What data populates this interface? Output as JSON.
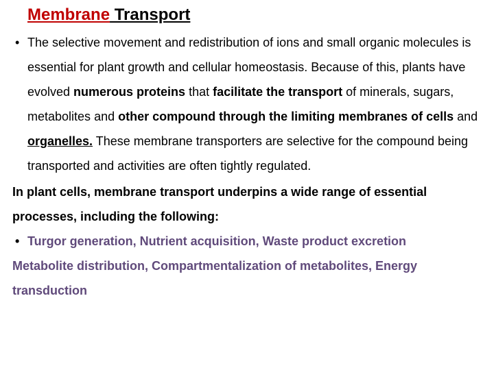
{
  "title_part1": "Membrane",
  "title_part2": " Transport",
  "bullet1": {
    "t1": "The selective movement and redistribution of ions and small organic molecules is essential for plant growth and cellular homeostasis. Because of this, plants have evolved ",
    "b1": "numerous proteins",
    "t2": " that ",
    "b2": "facilitate the transport",
    "t3": " of minerals, sugars, metabolites ",
    "t4": "and ",
    "b3": "other compound through the limiting membranes of cells",
    "t5": " and ",
    "b4": "organelles.",
    "t6": " These membrane transporters are selective for the compound being transported and activities are often tightly regulated."
  },
  "para2": "In plant cells, membrane transport underpins a wide range of essential processes, including the following:",
  "bullet2": "Turgor generation, Nutrient acquisition, Waste product excretion",
  "para3": "Metabolite distribution, Compartmentalization of metabolites, Energy transduction",
  "colors": {
    "title_red": "#c00000",
    "purple": "#604a7b",
    "black": "#000000",
    "background": "#ffffff"
  },
  "typography": {
    "title_fontsize": 24,
    "body_fontsize": 18,
    "font_family": "Comic Sans MS",
    "line_height": 2.0
  }
}
